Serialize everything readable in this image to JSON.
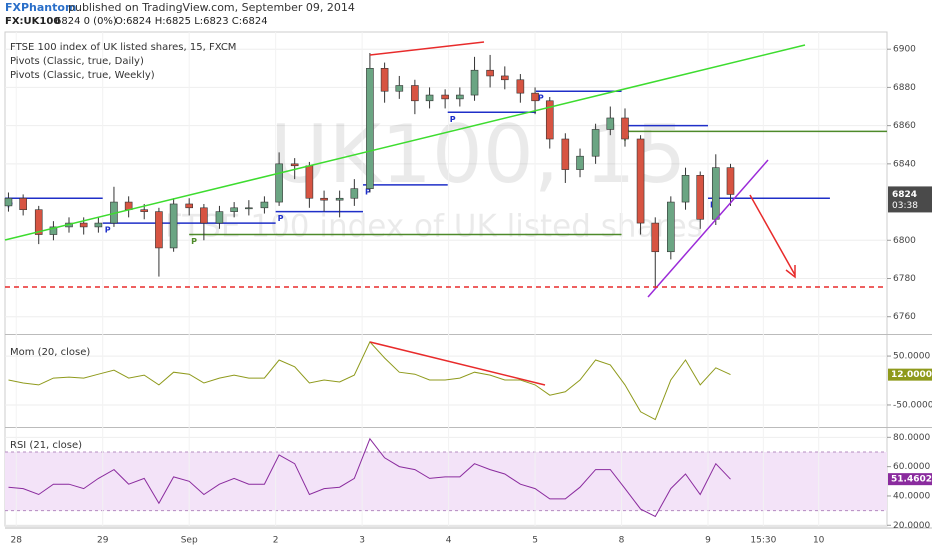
{
  "header": {
    "author": "FXPhantom",
    "published": "published on TradingView.com, September 09, 2014",
    "symbol": "FX:UK100",
    "quote": "6824 0 (0%)",
    "ohlc": "O:6824 H:6825 L:6823 C:6824"
  },
  "chart_data": [
    {
      "type": "candlestick",
      "title": "FTSE 100 index of UK listed shares, 15, FXCM",
      "legend": [
        "Pivots (Classic, true, Daily)",
        "Pivots (Classic, true, Weekly)"
      ],
      "watermark_symbol": "UK100, 15",
      "watermark_name": "FTSE 100 index of UK listed shares",
      "up_color": "#6ba583",
      "down_color": "#d75442",
      "countdown": "03:38",
      "x": [
        -0.09,
        0.08,
        0.26,
        0.43,
        0.61,
        0.78,
        0.95,
        1.13,
        1.3,
        1.48,
        1.65,
        1.82,
        2.0,
        2.17,
        2.35,
        2.52,
        2.69,
        2.87,
        3.04,
        3.22,
        3.39,
        3.56,
        3.74,
        3.91,
        4.09,
        4.26,
        4.43,
        4.61,
        4.78,
        4.96,
        5.13,
        5.3,
        5.48,
        5.65,
        5.83,
        6.0,
        6.17,
        6.35,
        6.52,
        6.7,
        6.87,
        7.04,
        7.22,
        7.39,
        7.57,
        7.74,
        7.91,
        8.09,
        8.26
      ],
      "open": [
        6818,
        6822,
        6816,
        6803,
        6807,
        6809,
        6807,
        6809,
        6820,
        6816,
        6815,
        6796,
        6819,
        6817,
        6809,
        6815,
        6817,
        6817,
        6820,
        6840,
        6839,
        6822,
        6821,
        6822,
        6827,
        6890,
        6878,
        6881,
        6873,
        6876,
        6874,
        6876,
        6889,
        6886,
        6884,
        6877,
        6873,
        6853,
        6837,
        6844,
        6858,
        6864,
        6853,
        6809,
        6794,
        6820,
        6834,
        6811,
        6838
      ],
      "high": [
        6825,
        6824,
        6818,
        6810,
        6812,
        6812,
        6812,
        6828,
        6823,
        6819,
        6817,
        6822,
        6822,
        6819,
        6818,
        6820,
        6821,
        6823,
        6846,
        6843,
        6841,
        6826,
        6826,
        6832,
        6898,
        6893,
        6886,
        6884,
        6880,
        6879,
        6880,
        6896,
        6897,
        6891,
        6887,
        6880,
        6875,
        6856,
        6848,
        6861,
        6870,
        6869,
        6855,
        6812,
        6823,
        6838,
        6836,
        6845,
        6840
      ],
      "low": [
        6815,
        6813,
        6798,
        6800,
        6804,
        6803,
        6804,
        6807,
        6812,
        6811,
        6781,
        6794,
        6813,
        6800,
        6806,
        6812,
        6813,
        6814,
        6818,
        6832,
        6817,
        6815,
        6812,
        6818,
        6825,
        6872,
        6874,
        6866,
        6869,
        6869,
        6870,
        6873,
        6880,
        6879,
        6872,
        6866,
        6848,
        6830,
        6833,
        6840,
        6855,
        6849,
        6803,
        6775,
        6790,
        6816,
        6806,
        6808,
        6818
      ],
      "close": [
        6822,
        6816,
        6803,
        6807,
        6809,
        6807,
        6809,
        6820,
        6816,
        6815,
        6796,
        6819,
        6817,
        6809,
        6815,
        6817,
        6817,
        6820,
        6840,
        6839,
        6822,
        6821,
        6822,
        6827,
        6890,
        6878,
        6881,
        6873,
        6876,
        6874,
        6876,
        6889,
        6886,
        6884,
        6877,
        6873,
        6853,
        6837,
        6844,
        6858,
        6864,
        6853,
        6809,
        6794,
        6820,
        6834,
        6811,
        6838,
        6824
      ],
      "pivots": [
        {
          "label": "P",
          "color": "#1f2fc8",
          "x": [
            -0.13,
            1.0
          ],
          "value": 6822
        },
        {
          "label": "P",
          "color": "#1f2fc8",
          "x": [
            1.0,
            3.0
          ],
          "value": 6809
        },
        {
          "label": "P",
          "color": "#1f2fc8",
          "x": [
            3.0,
            4.01
          ],
          "value": 6815
        },
        {
          "label": "P",
          "color": "#1f2fc8",
          "x": [
            4.01,
            4.99
          ],
          "value": 6829
        },
        {
          "label": "P",
          "color": "#1f2fc8",
          "x": [
            4.99,
            6.01
          ],
          "value": 6867
        },
        {
          "label": "P",
          "color": "#1f2fc8",
          "x": [
            6.01,
            7.0
          ],
          "value": 6878
        },
        {
          "label": "P",
          "color": "#1f2fc8",
          "x": [
            7.0,
            8.0
          ],
          "value": 6860
        },
        {
          "label": "P",
          "color": "#1f2fc8",
          "x": [
            8.0,
            9.41
          ],
          "value": 6822
        },
        {
          "label": "P",
          "color": "#4e8a2a",
          "x": [
            2.0,
            7.0
          ],
          "value": 6803
        },
        {
          "label": "P",
          "color": "#4e8a2a",
          "x": [
            7.0,
            10.07
          ],
          "value": 6857
        }
      ],
      "xlim": [
        -0.13,
        10.07
      ],
      "ylim": [
        6752,
        6909
      ],
      "yticks": [
        6760,
        6780,
        6800,
        6840,
        6860,
        6880,
        6900
      ],
      "grid": true
    },
    {
      "type": "line",
      "title": "Mom (20, close)",
      "color": "#8f9a1c",
      "values": [
        1,
        -5,
        -9,
        5,
        7,
        5,
        13,
        21,
        5,
        11,
        -9,
        17,
        13,
        -5,
        5,
        11,
        5,
        5,
        42,
        28,
        -5,
        1,
        -3,
        11,
        79,
        46,
        17,
        13,
        1,
        1,
        5,
        17,
        11,
        1,
        1,
        -9,
        -30,
        -23,
        1,
        42,
        32,
        -9,
        -64,
        -80,
        1,
        42,
        -9,
        26,
        12
      ],
      "value_labels": [
        null,
        null,
        null,
        null,
        null,
        null,
        null,
        null,
        null,
        null,
        null,
        null,
        null,
        null,
        null,
        null,
        null,
        null,
        null,
        null,
        null,
        null,
        null,
        null,
        null,
        null,
        null,
        null,
        null,
        null,
        null,
        null,
        null,
        null,
        null,
        null,
        null,
        null,
        null,
        null,
        null,
        null,
        null,
        null,
        null,
        null,
        null,
        null,
        "12.0000"
      ],
      "xlim": [
        -0.13,
        10.07
      ],
      "ylim": [
        -91,
        89
      ],
      "yticks": [
        {
          "value": 50,
          "label": "50.0000"
        },
        {
          "value": -50,
          "label": "-50.0000"
        }
      ],
      "grid": true
    },
    {
      "type": "line",
      "title": "RSI (21, close)",
      "color": "#8a2b9e",
      "band": [
        30,
        70
      ],
      "values": [
        46,
        45,
        41,
        48,
        48,
        45,
        52,
        58,
        48,
        52,
        35,
        53,
        50,
        41,
        48,
        52,
        48,
        48,
        68,
        62,
        41,
        45,
        46,
        52,
        79,
        66,
        60,
        58,
        52,
        53,
        53,
        62,
        58,
        55,
        48,
        45,
        38,
        38,
        46,
        58,
        58,
        45,
        31,
        26,
        45,
        55,
        41,
        62,
        51.4602
      ],
      "xlim": [
        -0.13,
        10.07
      ],
      "ylim": [
        19.5,
        85
      ],
      "yticks": [
        {
          "value": 80,
          "label": "80.0000"
        },
        {
          "value": 60,
          "label": "60.0000"
        },
        {
          "value": 40,
          "label": "40.0000"
        },
        {
          "value": 20,
          "label": "20.0000"
        }
      ],
      "xticks": [
        {
          "value": 0,
          "label": "28"
        },
        {
          "value": 1,
          "label": "29"
        },
        {
          "value": 2,
          "label": "Sep"
        },
        {
          "value": 3,
          "label": "2"
        },
        {
          "value": 4,
          "label": "3"
        },
        {
          "value": 5,
          "label": "4"
        },
        {
          "value": 6,
          "label": "5"
        },
        {
          "value": 7,
          "label": "8"
        },
        {
          "value": 8,
          "label": "9"
        },
        {
          "value": 8.64,
          "label": "15:30"
        },
        {
          "value": 9.28,
          "label": "10"
        }
      ],
      "grid": true
    }
  ]
}
